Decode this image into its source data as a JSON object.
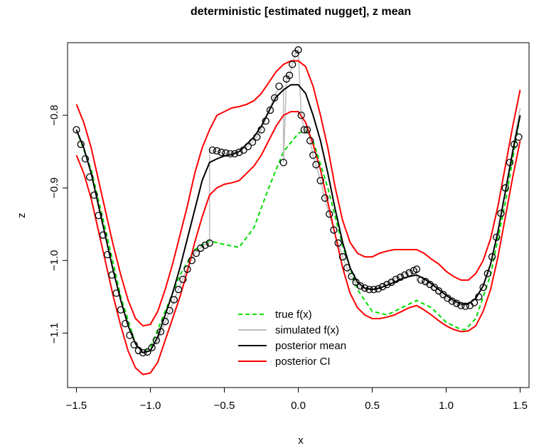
{
  "chart_data": {
    "type": "line",
    "title": "deterministic [estimated nugget], z mean",
    "xlabel": "x",
    "ylabel": "z",
    "xlim": [
      -1.56,
      1.56
    ],
    "ylim": [
      -1.175,
      -0.7
    ],
    "xticks": [
      -1.5,
      -1.0,
      -0.5,
      0.0,
      0.5,
      1.0,
      1.5
    ],
    "xtick_labels": [
      "−1.5",
      "−1.0",
      "−0.5",
      "0.0",
      "0.5",
      "1.0",
      "1.5"
    ],
    "yticks": [
      -0.8,
      -0.9,
      -1.0,
      -1.1
    ],
    "ytick_labels": [
      "−0.8",
      "−0.9",
      "−1.0",
      "−1.1"
    ],
    "grid": false,
    "legend_position": "bottom-center",
    "series": [
      {
        "name": "true f(x)",
        "style": "dashed",
        "color": "#00dd00",
        "x": [
          -1.5,
          -1.4,
          -1.3,
          -1.2,
          -1.1,
          -1.05,
          -1.0,
          -0.9,
          -0.8,
          -0.7,
          -0.6,
          -0.5,
          -0.4,
          -0.3,
          -0.2,
          -0.1,
          0.0,
          0.05,
          0.1,
          0.2,
          0.3,
          0.4,
          0.5,
          0.6,
          0.7,
          0.8,
          0.9,
          1.0,
          1.1,
          1.13,
          1.2,
          1.3,
          1.4,
          1.5
        ],
        "y": [
          -0.82,
          -0.875,
          -0.96,
          -1.05,
          -1.115,
          -1.125,
          -1.12,
          -1.07,
          -1.02,
          -0.985,
          -0.973,
          -0.978,
          -0.982,
          -0.955,
          -0.9,
          -0.85,
          -0.825,
          -0.82,
          -0.835,
          -0.9,
          -0.98,
          -1.04,
          -1.07,
          -1.075,
          -1.065,
          -1.055,
          -1.065,
          -1.085,
          -1.095,
          -1.095,
          -1.08,
          -1.02,
          -0.92,
          -0.8
        ]
      },
      {
        "name": "simulated f(x)",
        "style": "solid",
        "color": "#bebebe",
        "x": [
          -1.5,
          -1.45,
          -1.4,
          -1.35,
          -1.3,
          -1.25,
          -1.2,
          -1.15,
          -1.1,
          -1.05,
          -1.0,
          -0.95,
          -0.9,
          -0.85,
          -0.8,
          -0.75,
          -0.7,
          -0.65,
          -0.6,
          -0.6,
          -0.55,
          -0.5,
          -0.45,
          -0.4,
          -0.35,
          -0.3,
          -0.25,
          -0.2,
          -0.15,
          -0.1,
          -0.1,
          -0.08,
          -0.06,
          -0.04,
          -0.02,
          0.0,
          0.02,
          0.04,
          0.06,
          0.08,
          0.1,
          0.15,
          0.2,
          0.25,
          0.3,
          0.35,
          0.4,
          0.45,
          0.5,
          0.55,
          0.6,
          0.65,
          0.7,
          0.75,
          0.8,
          0.8,
          0.85,
          0.9,
          0.95,
          1.0,
          1.05,
          1.1,
          1.15,
          1.2,
          1.25,
          1.3,
          1.35,
          1.4,
          1.45,
          1.5
        ],
        "y": [
          -0.82,
          -0.845,
          -0.88,
          -0.925,
          -0.97,
          -1.015,
          -1.055,
          -1.09,
          -1.115,
          -1.127,
          -1.125,
          -1.11,
          -1.085,
          -1.06,
          -1.035,
          -1.01,
          -0.99,
          -0.98,
          -0.976,
          -0.848,
          -0.85,
          -0.853,
          -0.855,
          -0.85,
          -0.843,
          -0.835,
          -0.82,
          -0.795,
          -0.768,
          -0.76,
          -0.865,
          -0.75,
          -0.745,
          -0.73,
          -0.715,
          -0.71,
          -0.8,
          -0.82,
          -0.82,
          -0.835,
          -0.855,
          -0.89,
          -0.93,
          -0.965,
          -0.995,
          -1.02,
          -1.035,
          -1.04,
          -1.04,
          -1.035,
          -1.03,
          -1.025,
          -1.02,
          -1.015,
          -1.012,
          -1.027,
          -1.03,
          -1.037,
          -1.045,
          -1.052,
          -1.058,
          -1.063,
          -1.06,
          -1.052,
          -1.035,
          -1.005,
          -0.96,
          -0.905,
          -0.845,
          -0.79
        ]
      },
      {
        "name": "posterior mean",
        "style": "solid",
        "color": "#000000",
        "x": [
          -1.5,
          -1.45,
          -1.4,
          -1.35,
          -1.3,
          -1.25,
          -1.2,
          -1.15,
          -1.1,
          -1.05,
          -1.0,
          -0.95,
          -0.9,
          -0.85,
          -0.8,
          -0.75,
          -0.7,
          -0.65,
          -0.6,
          -0.55,
          -0.5,
          -0.45,
          -0.4,
          -0.35,
          -0.3,
          -0.25,
          -0.2,
          -0.15,
          -0.1,
          -0.05,
          0.0,
          0.05,
          0.1,
          0.15,
          0.2,
          0.25,
          0.3,
          0.35,
          0.4,
          0.45,
          0.5,
          0.55,
          0.6,
          0.65,
          0.7,
          0.75,
          0.8,
          0.85,
          0.9,
          0.95,
          1.0,
          1.05,
          1.1,
          1.15,
          1.2,
          1.25,
          1.3,
          1.35,
          1.4,
          1.45,
          1.5
        ],
        "y": [
          -0.82,
          -0.845,
          -0.88,
          -0.925,
          -0.97,
          -1.015,
          -1.055,
          -1.09,
          -1.115,
          -1.127,
          -1.124,
          -1.105,
          -1.075,
          -1.045,
          -1.01,
          -0.97,
          -0.93,
          -0.89,
          -0.865,
          -0.86,
          -0.856,
          -0.854,
          -0.85,
          -0.84,
          -0.83,
          -0.815,
          -0.795,
          -0.775,
          -0.765,
          -0.758,
          -0.758,
          -0.77,
          -0.8,
          -0.835,
          -0.88,
          -0.93,
          -0.975,
          -1.01,
          -1.03,
          -1.038,
          -1.04,
          -1.038,
          -1.034,
          -1.03,
          -1.025,
          -1.022,
          -1.02,
          -1.025,
          -1.032,
          -1.04,
          -1.048,
          -1.055,
          -1.06,
          -1.06,
          -1.052,
          -1.035,
          -1.005,
          -0.96,
          -0.905,
          -0.85,
          -0.8
        ]
      },
      {
        "name": "posterior CI",
        "style": "solid",
        "color": "#ff0000",
        "x": [
          -1.5,
          -1.45,
          -1.4,
          -1.35,
          -1.3,
          -1.25,
          -1.2,
          -1.15,
          -1.1,
          -1.05,
          -1.0,
          -0.95,
          -0.9,
          -0.85,
          -0.8,
          -0.75,
          -0.7,
          -0.65,
          -0.6,
          -0.55,
          -0.5,
          -0.45,
          -0.4,
          -0.35,
          -0.3,
          -0.25,
          -0.2,
          -0.15,
          -0.1,
          -0.05,
          0.0,
          0.05,
          0.1,
          0.15,
          0.2,
          0.25,
          0.3,
          0.35,
          0.4,
          0.45,
          0.5,
          0.55,
          0.6,
          0.65,
          0.7,
          0.75,
          0.8,
          0.85,
          0.9,
          0.95,
          1.0,
          1.05,
          1.1,
          1.15,
          1.2,
          1.25,
          1.3,
          1.35,
          1.4,
          1.45,
          1.5
        ],
        "y": [
          -0.785,
          -0.81,
          -0.845,
          -0.89,
          -0.935,
          -0.98,
          -1.02,
          -1.055,
          -1.08,
          -1.09,
          -1.088,
          -1.07,
          -1.04,
          -1.005,
          -0.965,
          -0.925,
          -0.88,
          -0.845,
          -0.82,
          -0.8,
          -0.795,
          -0.79,
          -0.788,
          -0.785,
          -0.78,
          -0.77,
          -0.755,
          -0.74,
          -0.73,
          -0.725,
          -0.725,
          -0.733,
          -0.76,
          -0.8,
          -0.845,
          -0.9,
          -0.945,
          -0.975,
          -0.99,
          -0.995,
          -0.995,
          -0.99,
          -0.987,
          -0.985,
          -0.985,
          -0.985,
          -0.985,
          -0.99,
          -0.998,
          -1.005,
          -1.015,
          -1.022,
          -1.027,
          -1.027,
          -1.018,
          -1.0,
          -0.97,
          -0.925,
          -0.87,
          -0.815,
          -0.765
        ]
      },
      {
        "name": "posterior CI lower",
        "style": "solid",
        "color": "#ff0000",
        "x": [
          -1.5,
          -1.45,
          -1.4,
          -1.35,
          -1.3,
          -1.25,
          -1.2,
          -1.15,
          -1.1,
          -1.05,
          -1.0,
          -0.95,
          -0.9,
          -0.85,
          -0.8,
          -0.75,
          -0.7,
          -0.65,
          -0.6,
          -0.55,
          -0.5,
          -0.45,
          -0.4,
          -0.35,
          -0.3,
          -0.25,
          -0.2,
          -0.15,
          -0.1,
          -0.05,
          0.0,
          0.05,
          0.1,
          0.15,
          0.2,
          0.25,
          0.3,
          0.35,
          0.4,
          0.45,
          0.5,
          0.55,
          0.6,
          0.65,
          0.7,
          0.75,
          0.8,
          0.85,
          0.9,
          0.95,
          1.0,
          1.05,
          1.1,
          1.15,
          1.2,
          1.25,
          1.3,
          1.35,
          1.4,
          1.45,
          1.5
        ],
        "y": [
          -0.855,
          -0.88,
          -0.915,
          -0.96,
          -1.005,
          -1.05,
          -1.09,
          -1.125,
          -1.148,
          -1.157,
          -1.155,
          -1.14,
          -1.11,
          -1.08,
          -1.05,
          -1.015,
          -0.975,
          -0.94,
          -0.91,
          -0.9,
          -0.895,
          -0.893,
          -0.89,
          -0.88,
          -0.87,
          -0.855,
          -0.835,
          -0.815,
          -0.8,
          -0.795,
          -0.795,
          -0.81,
          -0.84,
          -0.875,
          -0.92,
          -0.965,
          -1.01,
          -1.045,
          -1.065,
          -1.075,
          -1.08,
          -1.08,
          -1.078,
          -1.075,
          -1.07,
          -1.065,
          -1.062,
          -1.068,
          -1.075,
          -1.083,
          -1.09,
          -1.095,
          -1.098,
          -1.097,
          -1.09,
          -1.07,
          -1.04,
          -0.995,
          -0.94,
          -0.885,
          -0.835
        ]
      }
    ],
    "points": {
      "x": [
        -1.5,
        -1.47,
        -1.44,
        -1.41,
        -1.38,
        -1.35,
        -1.32,
        -1.29,
        -1.26,
        -1.23,
        -1.2,
        -1.17,
        -1.14,
        -1.11,
        -1.08,
        -1.05,
        -1.02,
        -0.99,
        -0.96,
        -0.93,
        -0.9,
        -0.87,
        -0.84,
        -0.81,
        -0.78,
        -0.75,
        -0.72,
        -0.69,
        -0.66,
        -0.63,
        -0.6,
        -0.58,
        -0.55,
        -0.52,
        -0.49,
        -0.46,
        -0.43,
        -0.4,
        -0.37,
        -0.34,
        -0.31,
        -0.28,
        -0.25,
        -0.22,
        -0.19,
        -0.16,
        -0.13,
        -0.1,
        -0.08,
        -0.06,
        -0.04,
        -0.02,
        0.0,
        0.02,
        0.04,
        0.06,
        0.08,
        0.1,
        0.12,
        0.15,
        0.18,
        0.21,
        0.24,
        0.27,
        0.3,
        0.33,
        0.36,
        0.39,
        0.42,
        0.45,
        0.48,
        0.51,
        0.54,
        0.57,
        0.6,
        0.63,
        0.66,
        0.69,
        0.72,
        0.75,
        0.78,
        0.8,
        0.83,
        0.86,
        0.89,
        0.92,
        0.95,
        0.98,
        1.01,
        1.04,
        1.07,
        1.1,
        1.13,
        1.16,
        1.19,
        1.22,
        1.25,
        1.28,
        1.31,
        1.34,
        1.37,
        1.4,
        1.43,
        1.46,
        1.49
      ],
      "y": [
        -0.82,
        -0.84,
        -0.86,
        -0.885,
        -0.91,
        -0.938,
        -0.965,
        -0.992,
        -1.02,
        -1.045,
        -1.068,
        -1.087,
        -1.103,
        -1.116,
        -1.124,
        -1.127,
        -1.126,
        -1.12,
        -1.11,
        -1.098,
        -1.084,
        -1.069,
        -1.054,
        -1.04,
        -1.026,
        -1.012,
        -1.0,
        -0.99,
        -0.983,
        -0.979,
        -0.976,
        -0.848,
        -0.849,
        -0.851,
        -0.852,
        -0.853,
        -0.853,
        -0.851,
        -0.848,
        -0.843,
        -0.837,
        -0.83,
        -0.82,
        -0.808,
        -0.793,
        -0.776,
        -0.76,
        -0.865,
        -0.75,
        -0.745,
        -0.73,
        -0.715,
        -0.71,
        -0.8,
        -0.82,
        -0.82,
        -0.835,
        -0.855,
        -0.868,
        -0.89,
        -0.914,
        -0.936,
        -0.958,
        -0.976,
        -0.995,
        -1.01,
        -1.022,
        -1.03,
        -1.035,
        -1.038,
        -1.04,
        -1.04,
        -1.039,
        -1.036,
        -1.033,
        -1.03,
        -1.026,
        -1.023,
        -1.02,
        -1.017,
        -1.014,
        -1.012,
        -1.027,
        -1.029,
        -1.033,
        -1.037,
        -1.042,
        -1.047,
        -1.052,
        -1.056,
        -1.059,
        -1.062,
        -1.063,
        -1.062,
        -1.058,
        -1.05,
        -1.037,
        -1.018,
        -0.995,
        -0.968,
        -0.935,
        -0.9,
        -0.865,
        -0.84,
        -0.83
      ]
    }
  }
}
